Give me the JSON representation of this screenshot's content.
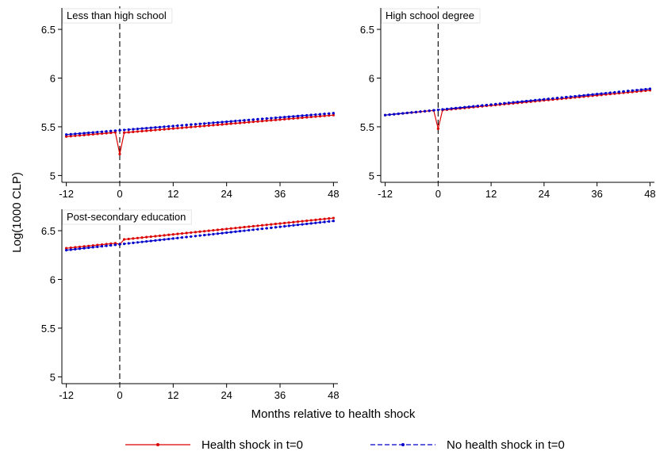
{
  "chart_data": {
    "type": "line",
    "xlabel": "Months relative to health shock",
    "ylabel": "Log(1000 CLP)",
    "xlim": [
      -13,
      49
    ],
    "xticks": [
      -12,
      0,
      12,
      24,
      36,
      48
    ],
    "yticks": [
      5,
      5.5,
      6,
      6.5
    ],
    "event_line_x": 0,
    "legend": {
      "position": "bottom",
      "items": [
        {
          "label": "Health shock in t=0",
          "color": "#dd0000",
          "style": "solid"
        },
        {
          "label": "No health shock in t=0",
          "color": "#0000cc",
          "style": "dashed"
        }
      ]
    },
    "panels": [
      {
        "title": "Less than high school",
        "ylim": [
          4.93,
          6.72
        ],
        "series": [
          {
            "key": "shock",
            "start": [
              -12,
              5.4
            ],
            "end": [
              48,
              5.63
            ],
            "dip": {
              "x": 0,
              "y": 5.22
            },
            "jump_after": -0.01
          },
          {
            "key": "no_shock",
            "start": [
              -12,
              5.42
            ],
            "end": [
              48,
              5.64
            ],
            "dip": null,
            "jump_after": 0
          }
        ]
      },
      {
        "title": "High school degree",
        "ylim": [
          4.93,
          6.72
        ],
        "series": [
          {
            "key": "shock",
            "start": [
              -12,
              5.62
            ],
            "end": [
              48,
              5.88
            ],
            "dip": {
              "x": 0,
              "y": 5.48
            },
            "jump_after": -0.005
          },
          {
            "key": "no_shock",
            "start": [
              -12,
              5.62
            ],
            "end": [
              48,
              5.89
            ],
            "dip": null,
            "jump_after": 0
          }
        ]
      },
      {
        "title": "Post-secondary education",
        "ylim": [
          4.93,
          6.72
        ],
        "series": [
          {
            "key": "shock",
            "start": [
              -12,
              6.32
            ],
            "end": [
              48,
              6.6
            ],
            "dip": {
              "x": 0,
              "y": 6.36
            },
            "jump_after": 0.03
          },
          {
            "key": "no_shock",
            "start": [
              -12,
              6.3
            ],
            "end": [
              48,
              6.6
            ],
            "dip": null,
            "jump_after": 0
          }
        ]
      }
    ]
  }
}
